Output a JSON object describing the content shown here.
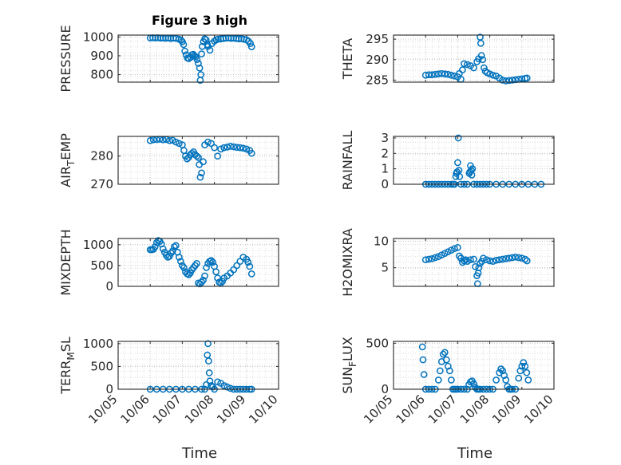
{
  "figure": {
    "title": "Figure 3 high",
    "xlabel": "Time"
  },
  "chart_data": [
    {
      "type": "scatter",
      "title": "Figure 3 high",
      "ylabel": "PRESSURE",
      "xlim": [
        0,
        5
      ],
      "ylim": [
        760,
        1010
      ],
      "yticks": [
        800,
        900,
        1000
      ],
      "yticklabels": [
        "800",
        "900",
        "1000"
      ],
      "xticks": [
        0,
        1,
        2,
        3,
        4,
        5
      ],
      "xticklabels": [
        "10/05",
        "10/06",
        "10/07",
        "10/08",
        "10/09",
        "10/10"
      ],
      "show_xticklabels": false,
      "x": [
        1.0,
        1.08,
        1.16,
        1.24,
        1.32,
        1.4,
        1.48,
        1.56,
        1.64,
        1.72,
        1.8,
        1.9,
        1.96,
        2.0,
        2.04,
        2.08,
        2.12,
        2.16,
        2.2,
        2.26,
        2.3,
        2.34,
        2.38,
        2.42,
        2.46,
        2.5,
        2.54,
        2.56,
        2.58,
        2.6,
        2.62,
        2.66,
        2.7,
        2.74,
        2.78,
        2.8,
        2.86,
        2.92,
        3.0,
        3.06,
        3.12,
        3.2,
        3.28,
        3.36,
        3.44,
        3.52,
        3.6,
        3.68,
        3.76,
        3.84,
        3.92,
        4.0,
        4.06,
        4.12,
        4.16
      ],
      "y": [
        995,
        996,
        995,
        996,
        994,
        995,
        993,
        995,
        992,
        994,
        993,
        988,
        982,
        975,
        960,
        925,
        905,
        888,
        885,
        892,
        905,
        908,
        900,
        895,
        880,
        860,
        835,
        770,
        800,
        910,
        950,
        975,
        990,
        985,
        960,
        950,
        930,
        965,
        978,
        985,
        988,
        990,
        992,
        994,
        995,
        993,
        994,
        992,
        990,
        991,
        988,
        985,
        978,
        965,
        948
      ]
    },
    {
      "type": "scatter",
      "title": "",
      "ylabel": "THETA",
      "xlim": [
        0,
        5
      ],
      "ylim": [
        284.5,
        296
      ],
      "yticks": [
        285,
        290,
        295
      ],
      "yticklabels": [
        "285",
        "290",
        "295"
      ],
      "show_xticklabels": false,
      "x": [
        1.0,
        1.1,
        1.2,
        1.3,
        1.4,
        1.5,
        1.6,
        1.7,
        1.8,
        1.9,
        2.0,
        2.05,
        2.1,
        2.15,
        2.2,
        2.3,
        2.4,
        2.5,
        2.6,
        2.65,
        2.7,
        2.72,
        2.74,
        2.78,
        2.82,
        2.86,
        2.92,
        3.0,
        3.1,
        3.2,
        3.3,
        3.4,
        3.5,
        3.6,
        3.7,
        3.8,
        3.9,
        4.0,
        4.1,
        4.16
      ],
      "y": [
        286.2,
        286.3,
        286.3,
        286.4,
        286.5,
        286.6,
        286.5,
        286.4,
        286.2,
        286.0,
        285.8,
        286.6,
        285.2,
        287.5,
        289.0,
        288.8,
        288.5,
        288.0,
        289.5,
        290.2,
        295.5,
        294.0,
        291.0,
        290.0,
        288.0,
        287.2,
        286.8,
        286.5,
        286.2,
        286.0,
        285.5,
        285.0,
        284.8,
        284.9,
        285.0,
        285.1,
        285.2,
        285.3,
        285.4,
        285.5
      ]
    },
    {
      "type": "scatter",
      "title": "",
      "ylabel": "AIR_TEMP",
      "ylabel_main": "AIR",
      "ylabel_sub": "T",
      "ylabel_rest": "EMP",
      "xlim": [
        0,
        5
      ],
      "ylim": [
        270,
        287
      ],
      "yticks": [
        270,
        280
      ],
      "yticklabels": [
        "270",
        "280"
      ],
      "show_xticklabels": false,
      "x": [
        1.0,
        1.1,
        1.2,
        1.3,
        1.4,
        1.5,
        1.6,
        1.7,
        1.8,
        1.9,
        2.0,
        2.05,
        2.1,
        2.15,
        2.2,
        2.25,
        2.3,
        2.35,
        2.4,
        2.45,
        2.5,
        2.53,
        2.56,
        2.6,
        2.65,
        2.7,
        2.8,
        2.9,
        3.0,
        3.1,
        3.2,
        3.3,
        3.4,
        3.5,
        3.6,
        3.7,
        3.8,
        3.9,
        4.0,
        4.1,
        4.16
      ],
      "y": [
        285.5,
        285.8,
        285.9,
        286.0,
        285.8,
        285.9,
        285.5,
        285.6,
        285.0,
        284.5,
        284.0,
        282.0,
        280.0,
        279.0,
        279.5,
        280.5,
        281.0,
        281.5,
        280.5,
        280.0,
        279.5,
        277.0,
        272.5,
        274.0,
        278.0,
        284.0,
        285.0,
        284.5,
        283.0,
        280.0,
        282.5,
        283.0,
        283.2,
        283.5,
        283.3,
        283.1,
        283.0,
        282.8,
        282.5,
        282.0,
        281.0
      ]
    },
    {
      "type": "scatter",
      "title": "",
      "ylabel": "RAINFALL",
      "xlim": [
        0,
        5
      ],
      "ylim": [
        0,
        3.1
      ],
      "yticks": [
        0,
        1,
        2,
        3
      ],
      "yticklabels": [
        "0",
        "1",
        "2",
        "3"
      ],
      "show_xticklabels": false,
      "x": [
        1.0,
        1.1,
        1.2,
        1.3,
        1.4,
        1.5,
        1.6,
        1.7,
        1.8,
        1.86,
        1.9,
        1.94,
        1.96,
        1.98,
        2.0,
        2.02,
        2.04,
        2.06,
        2.1,
        2.2,
        2.3,
        2.36,
        2.38,
        2.4,
        2.42,
        2.44,
        2.46,
        2.5,
        2.6,
        2.7,
        2.8,
        2.9,
        3.0,
        3.2,
        3.4,
        3.6,
        3.8,
        4.0,
        4.2,
        4.4,
        4.6
      ],
      "y": [
        0,
        0,
        0,
        0,
        0,
        0,
        0,
        0,
        0,
        0,
        0,
        0.5,
        0.7,
        0.8,
        1.4,
        3.0,
        0.9,
        0.5,
        0,
        0,
        0,
        0.7,
        0.8,
        1.2,
        0.9,
        0.6,
        1.0,
        0,
        0,
        0,
        0,
        0,
        0,
        0,
        0,
        0,
        0,
        0,
        0,
        0,
        0
      ]
    },
    {
      "type": "scatter",
      "title": "",
      "ylabel": "MIXDEPTH",
      "xlim": [
        0,
        5
      ],
      "ylim": [
        0,
        1150
      ],
      "yticks": [
        0,
        500,
        1000
      ],
      "yticklabels": [
        "0",
        "500",
        "1000"
      ],
      "show_xticklabels": false,
      "x": [
        1.0,
        1.05,
        1.1,
        1.15,
        1.2,
        1.25,
        1.3,
        1.35,
        1.4,
        1.45,
        1.5,
        1.55,
        1.6,
        1.65,
        1.7,
        1.75,
        1.8,
        1.85,
        1.9,
        1.95,
        2.0,
        2.05,
        2.1,
        2.15,
        2.2,
        2.25,
        2.3,
        2.35,
        2.4,
        2.45,
        2.5,
        2.55,
        2.6,
        2.65,
        2.7,
        2.75,
        2.8,
        2.85,
        2.9,
        2.95,
        3.0,
        3.05,
        3.1,
        3.15,
        3.2,
        3.25,
        3.3,
        3.4,
        3.5,
        3.6,
        3.7,
        3.8,
        3.9,
        4.0,
        4.05,
        4.1,
        4.16
      ],
      "y": [
        880,
        880,
        890,
        950,
        1050,
        1100,
        1080,
        1020,
        900,
        820,
        750,
        700,
        720,
        800,
        850,
        950,
        980,
        820,
        700,
        600,
        500,
        450,
        350,
        300,
        280,
        320,
        400,
        450,
        500,
        550,
        80,
        60,
        100,
        150,
        250,
        450,
        550,
        600,
        620,
        580,
        480,
        350,
        200,
        100,
        80,
        120,
        200,
        250,
        320,
        400,
        500,
        600,
        700,
        650,
        580,
        480,
        300
      ]
    },
    {
      "type": "scatter",
      "title": "",
      "ylabel": "H2OMIXRA",
      "xlim": [
        0,
        5
      ],
      "ylim": [
        1.5,
        10.5
      ],
      "yticks": [
        5,
        10
      ],
      "yticklabels": [
        "5",
        "10"
      ],
      "show_xticklabels": false,
      "x": [
        1.0,
        1.1,
        1.2,
        1.3,
        1.4,
        1.5,
        1.6,
        1.7,
        1.8,
        1.9,
        2.0,
        2.05,
        2.1,
        2.15,
        2.2,
        2.25,
        2.3,
        2.4,
        2.5,
        2.55,
        2.6,
        2.62,
        2.64,
        2.66,
        2.7,
        2.75,
        2.8,
        2.9,
        3.0,
        3.1,
        3.2,
        3.3,
        3.4,
        3.5,
        3.6,
        3.7,
        3.8,
        3.9,
        4.0,
        4.1,
        4.16
      ],
      "y": [
        6.5,
        6.6,
        6.7,
        6.9,
        7.1,
        7.4,
        7.7,
        8.0,
        8.3,
        8.6,
        8.8,
        7.2,
        6.8,
        6.0,
        6.3,
        6.5,
        6.2,
        6.5,
        6.6,
        5.2,
        3.5,
        2.0,
        4.0,
        5.0,
        5.8,
        6.2,
        6.8,
        6.5,
        6.3,
        6.2,
        6.4,
        6.5,
        6.6,
        6.7,
        6.8,
        6.9,
        7.0,
        6.9,
        6.8,
        6.6,
        6.3
      ]
    },
    {
      "type": "scatter",
      "title": "",
      "ylabel": "TERR_MSL",
      "ylabel_main": "TERR",
      "ylabel_sub": "M",
      "ylabel_rest": "SL",
      "xlim": [
        0,
        5
      ],
      "ylim": [
        0,
        1050
      ],
      "yticks": [
        0,
        500,
        1000
      ],
      "yticklabels": [
        "0",
        "500",
        "1000"
      ],
      "show_xticklabels": true,
      "xticks": [
        0,
        1,
        2,
        3,
        4,
        5
      ],
      "xticklabels": [
        "10/05",
        "10/06",
        "10/07",
        "10/08",
        "10/09",
        "10/10"
      ],
      "xlabel": "Time",
      "x": [
        1.0,
        1.2,
        1.4,
        1.6,
        1.8,
        2.0,
        2.2,
        2.4,
        2.6,
        2.7,
        2.75,
        2.78,
        2.8,
        2.82,
        2.84,
        2.86,
        2.9,
        2.95,
        3.0,
        3.1,
        3.2,
        3.3,
        3.4,
        3.5,
        3.6,
        3.7,
        3.8,
        3.9,
        4.0,
        4.1,
        4.16
      ],
      "y": [
        0,
        0,
        0,
        0,
        0,
        0,
        0,
        0,
        0,
        0,
        100,
        750,
        1000,
        620,
        360,
        180,
        80,
        50,
        0,
        160,
        130,
        80,
        50,
        20,
        0,
        0,
        0,
        0,
        0,
        0,
        0
      ]
    },
    {
      "type": "scatter",
      "title": "",
      "ylabel": "SUN_FLUX",
      "ylabel_main": "SUN",
      "ylabel_sub": "F",
      "ylabel_rest": "LUX",
      "xlim": [
        0,
        5
      ],
      "ylim": [
        0,
        520
      ],
      "yticks": [
        0,
        500
      ],
      "yticklabels": [
        "0",
        "500"
      ],
      "show_xticklabels": true,
      "xticks": [
        0,
        1,
        2,
        3,
        4,
        5
      ],
      "xticklabels": [
        "10/05",
        "10/06",
        "10/07",
        "10/08",
        "10/09",
        "10/10"
      ],
      "xlabel": "Time",
      "x": [
        0.9,
        0.92,
        0.95,
        1.0,
        1.1,
        1.2,
        1.3,
        1.4,
        1.45,
        1.5,
        1.55,
        1.6,
        1.65,
        1.7,
        1.75,
        1.8,
        1.85,
        1.9,
        1.95,
        2.0,
        2.1,
        2.2,
        2.3,
        2.35,
        2.4,
        2.45,
        2.5,
        2.55,
        2.6,
        2.65,
        2.7,
        2.8,
        2.9,
        3.0,
        3.1,
        3.2,
        3.3,
        3.35,
        3.4,
        3.45,
        3.5,
        3.55,
        3.6,
        3.65,
        3.7,
        3.8,
        3.9,
        3.95,
        4.0,
        4.05,
        4.1,
        4.15,
        4.2
      ],
      "y": [
        460,
        320,
        160,
        0,
        0,
        0,
        0,
        100,
        200,
        300,
        380,
        400,
        320,
        250,
        200,
        100,
        0,
        0,
        0,
        0,
        0,
        0,
        0,
        50,
        80,
        90,
        60,
        20,
        0,
        0,
        0,
        0,
        0,
        0,
        0,
        100,
        180,
        220,
        200,
        150,
        100,
        30,
        0,
        0,
        0,
        0,
        120,
        200,
        250,
        290,
        250,
        180,
        100
      ]
    }
  ]
}
